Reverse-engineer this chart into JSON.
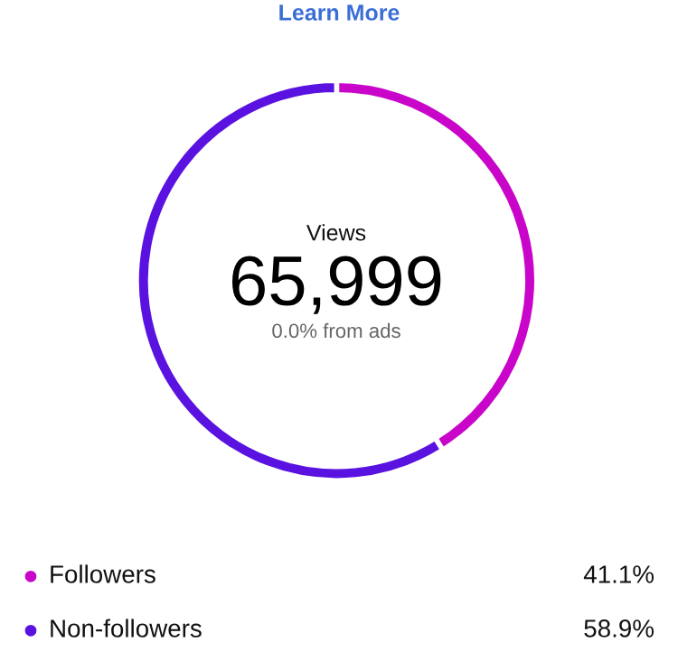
{
  "chart_data": {
    "type": "donut",
    "categories": [
      "Followers",
      "Non-followers"
    ],
    "values": [
      41.1,
      58.9
    ],
    "colors": [
      "#c905c9",
      "#5a12e0"
    ],
    "value_labels": [
      "41.1%",
      "58.9%"
    ],
    "annotations": [
      "Learn More",
      "Views",
      "65,999",
      "0.0% from ads"
    ],
    "legend": "bottom"
  }
}
